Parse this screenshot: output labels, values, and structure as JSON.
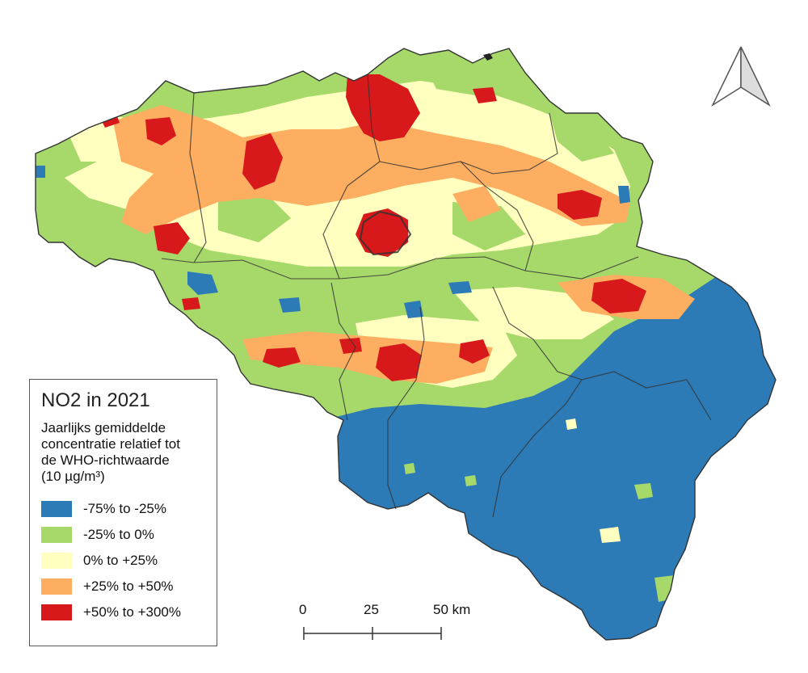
{
  "legend": {
    "title": "NO2 in 2021",
    "subtitle_lines": [
      "Jaarlijks gemiddelde",
      "concentratie relatief tot",
      "de WHO-richtwaarde",
      "(10 µg/m³)"
    ],
    "classes": [
      {
        "label": "-75% to -25%",
        "color": "#2c7bb6"
      },
      {
        "label": "-25% to 0%",
        "color": "#a6d96a"
      },
      {
        "label": "0% to +25%",
        "color": "#ffffbf"
      },
      {
        "label": "+25% to +50%",
        "color": "#fdae61"
      },
      {
        "label": "+50% to +300%",
        "color": "#d7191c"
      }
    ]
  },
  "scalebar": {
    "ticks": [
      "0",
      "25",
      "50 km"
    ]
  }
}
